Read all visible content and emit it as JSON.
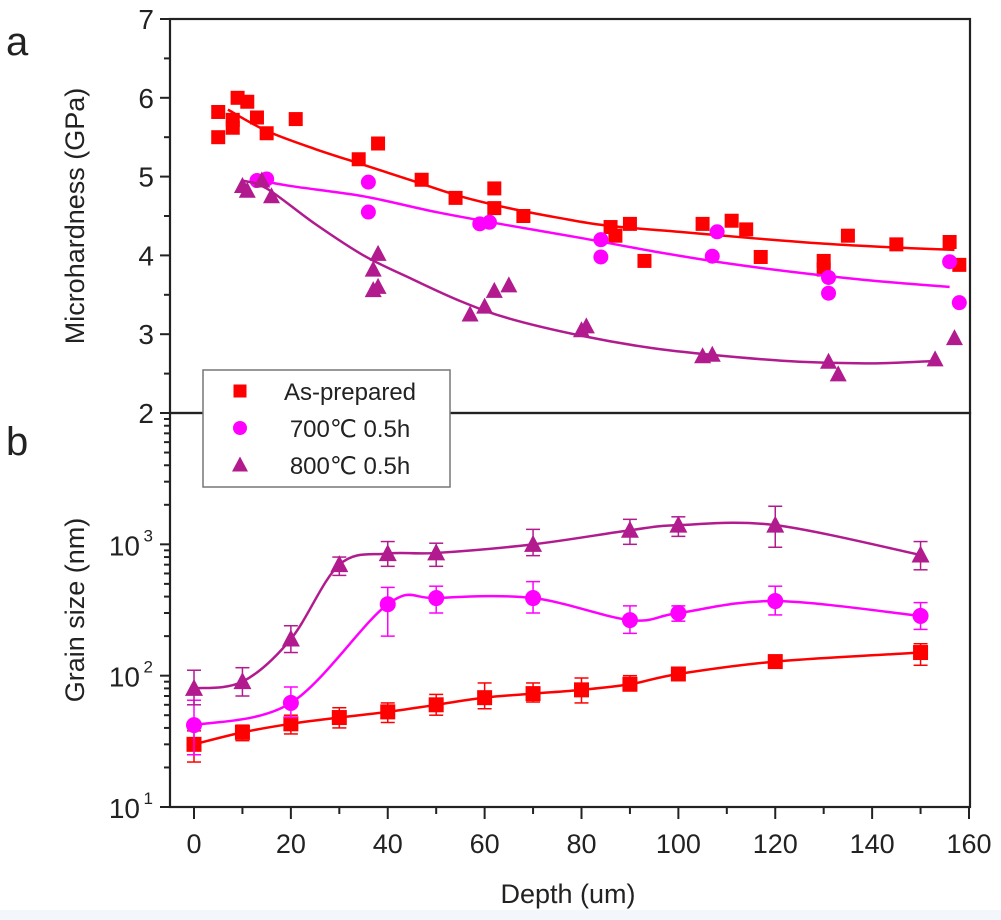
{
  "chart_data": [
    {
      "panel_label": "a",
      "type": "scatter",
      "title": "",
      "xlabel": "Depth (um)",
      "ylabel": "Microhardness (GPa)",
      "xlim": [
        -6,
        160
      ],
      "ylim": [
        2,
        7
      ],
      "yticks": [
        "2",
        "3",
        "4",
        "5",
        "6",
        "7"
      ],
      "grid": false,
      "series": [
        {
          "name": "As-prepared",
          "marker": "square",
          "color": "#ff0000",
          "points": [
            [
              5,
              5.5
            ],
            [
              5,
              5.82
            ],
            [
              8,
              5.72
            ],
            [
              8,
              5.62
            ],
            [
              9,
              6.0
            ],
            [
              11,
              5.95
            ],
            [
              13,
              5.75
            ],
            [
              15,
              5.55
            ],
            [
              21,
              5.73
            ],
            [
              34,
              5.22
            ],
            [
              38,
              5.42
            ],
            [
              47,
              4.96
            ],
            [
              54,
              4.73
            ],
            [
              62,
              4.85
            ],
            [
              62,
              4.6
            ],
            [
              68,
              4.5
            ],
            [
              86,
              4.36
            ],
            [
              87,
              4.25
            ],
            [
              90,
              4.4
            ],
            [
              93,
              3.93
            ],
            [
              105,
              4.4
            ],
            [
              111,
              4.44
            ],
            [
              114,
              4.33
            ],
            [
              117,
              3.98
            ],
            [
              130,
              3.93
            ],
            [
              130,
              3.82
            ],
            [
              135,
              4.25
            ],
            [
              145,
              4.14
            ],
            [
              156,
              4.17
            ],
            [
              158,
              3.88
            ]
          ],
          "fit": [
            [
              7,
              5.85
            ],
            [
              15,
              5.58
            ],
            [
              25,
              5.35
            ],
            [
              35,
              5.15
            ],
            [
              45,
              4.95
            ],
            [
              55,
              4.75
            ],
            [
              65,
              4.6
            ],
            [
              75,
              4.48
            ],
            [
              85,
              4.38
            ],
            [
              100,
              4.3
            ],
            [
              115,
              4.22
            ],
            [
              130,
              4.15
            ],
            [
              145,
              4.1
            ],
            [
              157,
              4.07
            ]
          ]
        },
        {
          "name": "700℃ 0.5h",
          "marker": "circle",
          "color": "#ff00ff",
          "points": [
            [
              13,
              4.95
            ],
            [
              15,
              4.97
            ],
            [
              36,
              4.93
            ],
            [
              36,
              4.55
            ],
            [
              59,
              4.4
            ],
            [
              61,
              4.42
            ],
            [
              84,
              4.2
            ],
            [
              84,
              3.98
            ],
            [
              108,
              4.3
            ],
            [
              107,
              3.99
            ],
            [
              131,
              3.72
            ],
            [
              131,
              3.52
            ],
            [
              156,
              3.92
            ],
            [
              158,
              3.4
            ]
          ],
          "fit": [
            [
              12,
              4.97
            ],
            [
              20,
              4.88
            ],
            [
              35,
              4.75
            ],
            [
              50,
              4.55
            ],
            [
              65,
              4.38
            ],
            [
              80,
              4.22
            ],
            [
              95,
              4.05
            ],
            [
              110,
              3.9
            ],
            [
              125,
              3.78
            ],
            [
              140,
              3.68
            ],
            [
              156,
              3.6
            ]
          ]
        },
        {
          "name": "800℃ 0.5h",
          "marker": "triangle",
          "color": "#b11b8e",
          "points": [
            [
              10,
              4.88
            ],
            [
              11,
              4.82
            ],
            [
              14,
              4.95
            ],
            [
              16,
              4.75
            ],
            [
              38,
              4.02
            ],
            [
              37,
              3.82
            ],
            [
              38,
              3.6
            ],
            [
              37,
              3.56
            ],
            [
              57,
              3.25
            ],
            [
              60,
              3.35
            ],
            [
              62,
              3.55
            ],
            [
              65,
              3.62
            ],
            [
              80,
              3.05
            ],
            [
              81,
              3.1
            ],
            [
              105,
              2.72
            ],
            [
              107,
              2.74
            ],
            [
              131,
              2.65
            ],
            [
              133,
              2.49
            ],
            [
              153,
              2.68
            ],
            [
              157,
              2.95
            ]
          ],
          "fit": [
            [
              10,
              4.95
            ],
            [
              15,
              4.85
            ],
            [
              25,
              4.4
            ],
            [
              35,
              4.0
            ],
            [
              45,
              3.7
            ],
            [
              55,
              3.42
            ],
            [
              65,
              3.2
            ],
            [
              80,
              2.98
            ],
            [
              95,
              2.82
            ],
            [
              110,
              2.72
            ],
            [
              125,
              2.65
            ],
            [
              140,
              2.63
            ],
            [
              153,
              2.66
            ]
          ]
        }
      ]
    },
    {
      "panel_label": "b",
      "type": "line",
      "title": "",
      "xlabel": "Depth (um)",
      "ylabel": "Grain size (nm)",
      "yscale": "log",
      "xlim": [
        -6,
        160
      ],
      "ylim": [
        10,
        10000
      ],
      "xticks": [
        "0",
        "20",
        "40",
        "60",
        "80",
        "100",
        "120",
        "140",
        "160"
      ],
      "yticks": [
        {
          "base": "10",
          "exp": "1"
        },
        {
          "base": "10",
          "exp": "2"
        },
        {
          "base": "10",
          "exp": "3"
        }
      ],
      "grid": false,
      "x": [
        0,
        10,
        20,
        30,
        40,
        50,
        60,
        70,
        80,
        90,
        100,
        120,
        150
      ],
      "series": [
        {
          "name": "As-prepared",
          "marker": "square",
          "color": "#ff0000",
          "x": [
            0,
            10,
            20,
            30,
            40,
            50,
            60,
            70,
            80,
            90,
            100,
            120,
            150
          ],
          "values": [
            30,
            37,
            43,
            48,
            53,
            60,
            68,
            73,
            78,
            86,
            103,
            128,
            150
          ],
          "err_low": [
            22,
            32,
            36,
            40,
            44,
            50,
            56,
            63,
            62,
            78,
            96,
            118,
            120
          ],
          "err_high": [
            38,
            42,
            50,
            57,
            62,
            72,
            88,
            88,
            96,
            100,
            112,
            140,
            175
          ]
        },
        {
          "name": "700℃ 0.5h",
          "marker": "circle",
          "color": "#ff00ff",
          "x": [
            0,
            20,
            40,
            50,
            70,
            90,
            100,
            120,
            150
          ],
          "values": [
            42,
            62,
            350,
            390,
            390,
            265,
            300,
            370,
            285
          ],
          "err_low": [
            25,
            48,
            200,
            300,
            300,
            210,
            260,
            290,
            225
          ],
          "err_high": [
            65,
            82,
            470,
            480,
            520,
            340,
            340,
            480,
            360
          ]
        },
        {
          "name": "800℃ 0.5h",
          "marker": "triangle",
          "color": "#b11b8e",
          "x": [
            0,
            10,
            20,
            30,
            40,
            50,
            70,
            90,
            100,
            120,
            150
          ],
          "values": [
            80,
            90,
            190,
            700,
            850,
            860,
            1000,
            1280,
            1400,
            1400,
            830
          ],
          "err_low": [
            60,
            70,
            150,
            580,
            680,
            680,
            820,
            1000,
            1150,
            950,
            640
          ],
          "err_high": [
            110,
            115,
            240,
            800,
            1050,
            1020,
            1300,
            1550,
            1620,
            1950,
            1050
          ]
        }
      ]
    }
  ],
  "legend": {
    "placement": "top-left of panel b",
    "entries": [
      "As-prepared",
      "700℃ 0.5h",
      "800℃ 0.5h"
    ]
  },
  "shared_xlabel": "Depth (um)"
}
